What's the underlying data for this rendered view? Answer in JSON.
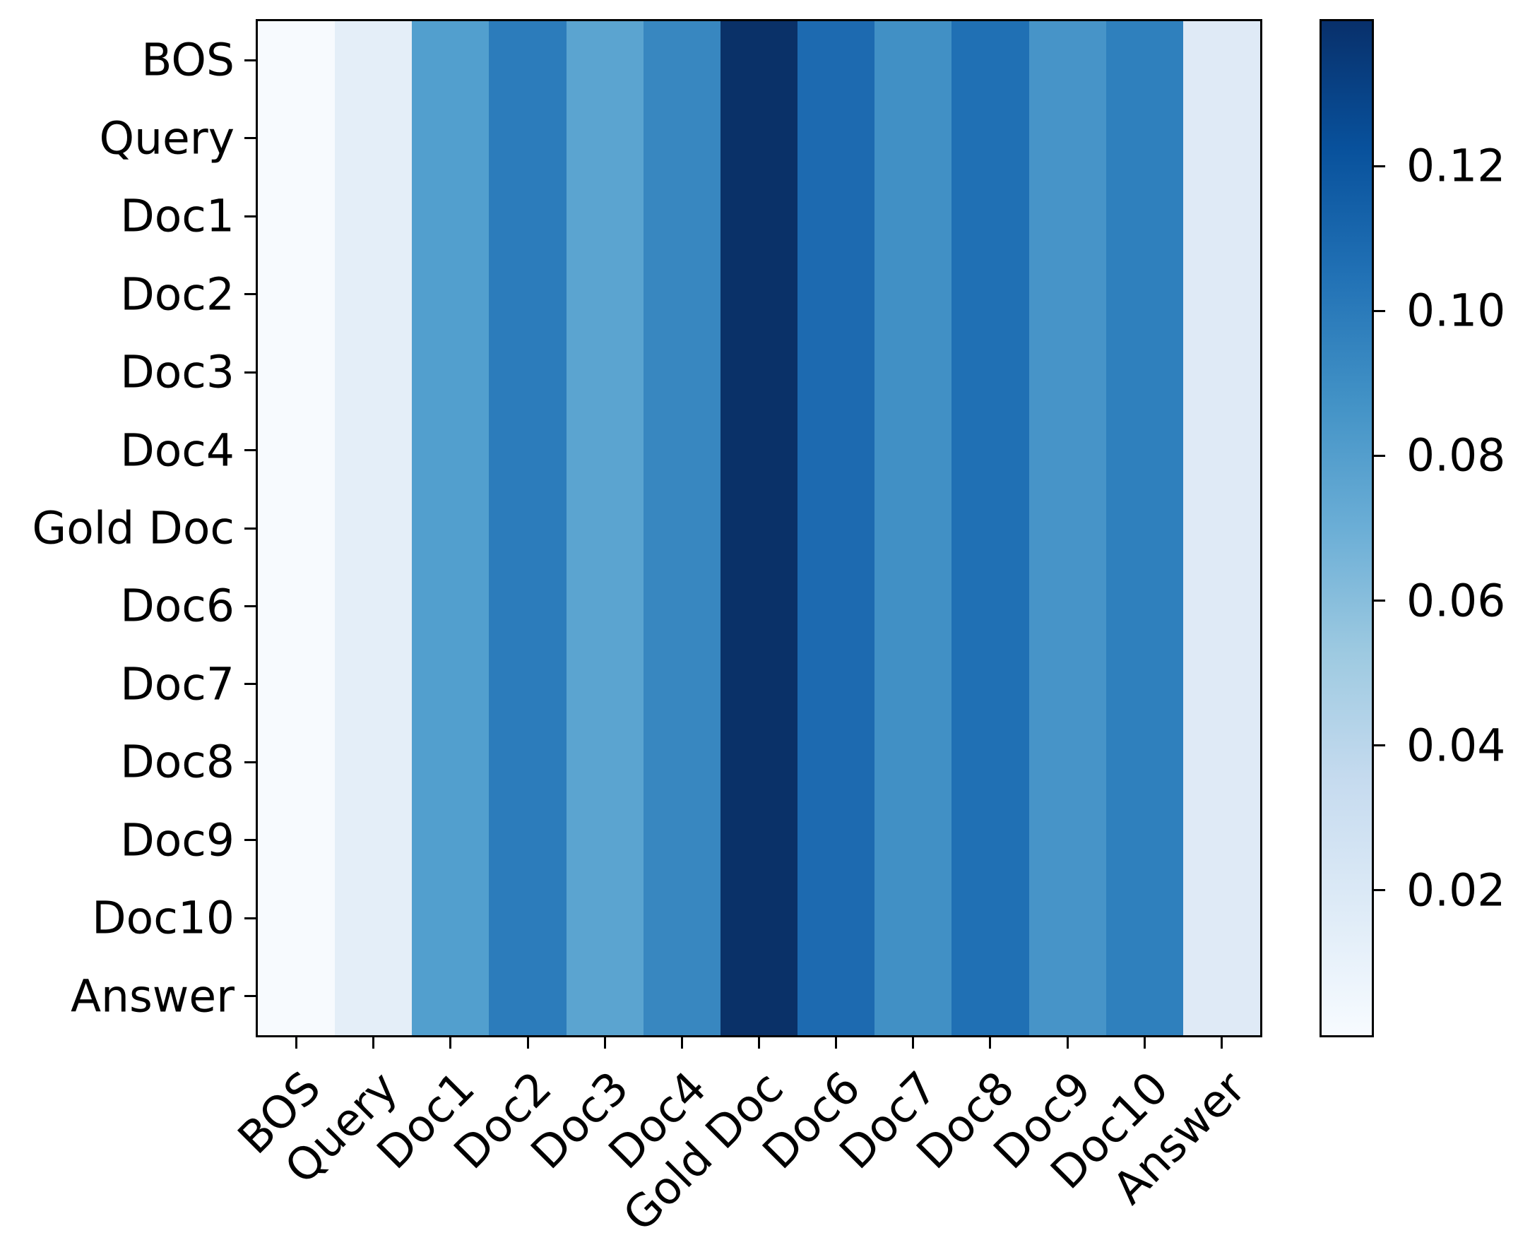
{
  "figure": {
    "background_color": "#ffffff",
    "text_color": "#000000",
    "title": ""
  },
  "chart_data": {
    "type": "heatmap",
    "title": "",
    "xlabel": "",
    "ylabel": "",
    "colormap": "Blues",
    "x_categories": [
      "BOS",
      "Query",
      "Doc1",
      "Doc2",
      "Doc3",
      "Doc4",
      "Gold Doc",
      "Doc6",
      "Doc7",
      "Doc8",
      "Doc9",
      "Doc10",
      "Answer"
    ],
    "y_categories": [
      "BOS",
      "Query",
      "Doc1",
      "Doc2",
      "Doc3",
      "Doc4",
      "Gold Doc",
      "Doc6",
      "Doc7",
      "Doc8",
      "Doc9",
      "Doc10",
      "Answer"
    ],
    "values_uniform_across_rows": true,
    "column_values": [
      0.003,
      0.014,
      0.081,
      0.099,
      0.077,
      0.092,
      0.138,
      0.107,
      0.088,
      0.105,
      0.086,
      0.097,
      0.018
    ],
    "column_colors": [
      "#f7fafe",
      "#e4eef8",
      "#529fce",
      "#2c7cbb",
      "#5ba4d0",
      "#3887c0",
      "#0a3168",
      "#1d6ab0",
      "#4190c5",
      "#2070b4",
      "#4794c8",
      "#2f80bd",
      "#dfeaf6"
    ],
    "colorbar": {
      "min": 0.0,
      "max": 0.14,
      "tick_values": [
        0.02,
        0.04,
        0.06,
        0.08,
        0.1,
        0.12
      ],
      "tick_labels": [
        "0.02",
        "0.04",
        "0.06",
        "0.08",
        "0.10",
        "0.12"
      ],
      "position": "right",
      "gradient_stops_top_to_bottom": [
        "#08306b",
        "#08519c",
        "#2171b5",
        "#4292c6",
        "#6baed6",
        "#9ecae1",
        "#c6dbef",
        "#deebf7",
        "#f7fbff"
      ]
    },
    "grid": false,
    "legend": null
  }
}
